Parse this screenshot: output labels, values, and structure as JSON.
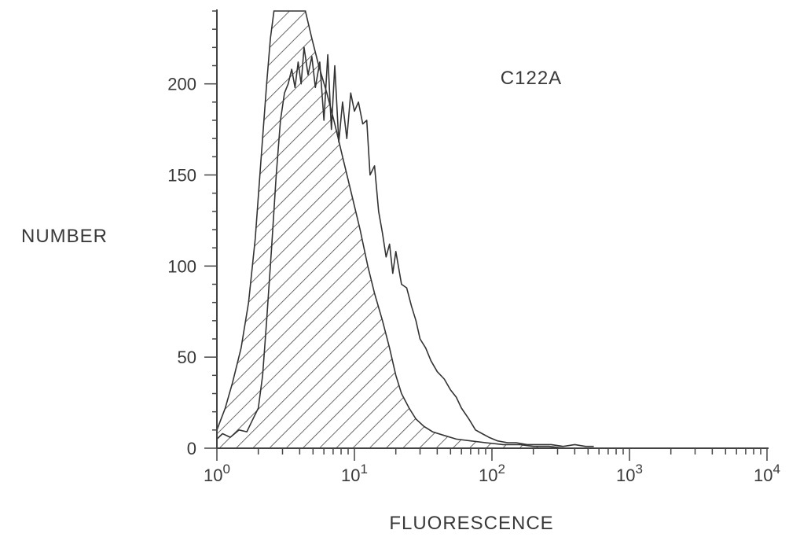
{
  "chart_data": {
    "type": "area",
    "title": "",
    "annotation": "C122A",
    "xlabel": "FLUORESCENCE",
    "ylabel": "NUMBER",
    "x_scale": "log",
    "xlim": [
      1,
      10000
    ],
    "ylim": [
      0,
      240
    ],
    "x_ticks": [
      {
        "value": 1,
        "base": "10",
        "exp": "0"
      },
      {
        "value": 10,
        "base": "10",
        "exp": "1"
      },
      {
        "value": 100,
        "base": "10",
        "exp": "2"
      },
      {
        "value": 1000,
        "base": "10",
        "exp": "3"
      },
      {
        "value": 10000,
        "base": "10",
        "exp": "4"
      }
    ],
    "y_ticks": [
      "0",
      "50",
      "100",
      "150",
      "200"
    ],
    "y_tick_values": [
      0,
      50,
      100,
      150,
      200
    ],
    "grid": false,
    "series": [
      {
        "style": "hatched",
        "x": [
          1,
          1.15,
          1.3,
          1.5,
          1.7,
          1.9,
          2.1,
          2.3,
          2.45,
          2.6,
          3,
          3.5,
          4,
          4.4,
          4.9,
          5.5,
          6.3,
          7.2,
          8.2,
          9.5,
          11,
          12.5,
          14,
          16,
          18,
          20,
          22,
          25,
          28,
          32,
          37,
          45,
          55,
          70,
          90,
          120,
          160,
          200,
          260,
          340
        ],
        "y": [
          10,
          22,
          36,
          55,
          80,
          115,
          160,
          200,
          225,
          240,
          240,
          240,
          240,
          240,
          225,
          210,
          195,
          178,
          160,
          140,
          120,
          100,
          85,
          70,
          55,
          40,
          30,
          22,
          16,
          12,
          9,
          7,
          5,
          4,
          3,
          2,
          2,
          1,
          1,
          0
        ]
      },
      {
        "style": "outline",
        "x": [
          1,
          1.1,
          1.25,
          1.45,
          1.65,
          1.8,
          2,
          2.15,
          2.3,
          2.5,
          2.7,
          2.9,
          3.1,
          3.3,
          3.5,
          3.7,
          3.9,
          4.1,
          4.3,
          4.6,
          4.9,
          5.2,
          5.6,
          6,
          6.4,
          6.8,
          7.2,
          7.7,
          8.2,
          8.8,
          9.4,
          10,
          10.7,
          11.5,
          12.3,
          13,
          14,
          15,
          16,
          17,
          18,
          19,
          20,
          22,
          24,
          26,
          28,
          30,
          33,
          36,
          40,
          45,
          50,
          55,
          60,
          68,
          76,
          85,
          95,
          110,
          130,
          150,
          180,
          220,
          270,
          330,
          400,
          480,
          550
        ],
        "y": [
          5,
          8,
          6,
          10,
          9,
          15,
          22,
          40,
          70,
          110,
          150,
          180,
          195,
          200,
          208,
          198,
          212,
          200,
          220,
          205,
          215,
          198,
          212,
          180,
          216,
          175,
          210,
          168,
          190,
          170,
          195,
          185,
          190,
          178,
          180,
          150,
          155,
          130,
          118,
          105,
          112,
          96,
          108,
          90,
          88,
          78,
          70,
          60,
          55,
          48,
          42,
          38,
          32,
          28,
          22,
          16,
          10,
          8,
          6,
          4,
          3,
          3,
          2,
          2,
          2,
          1,
          2,
          1,
          1
        ]
      }
    ]
  }
}
